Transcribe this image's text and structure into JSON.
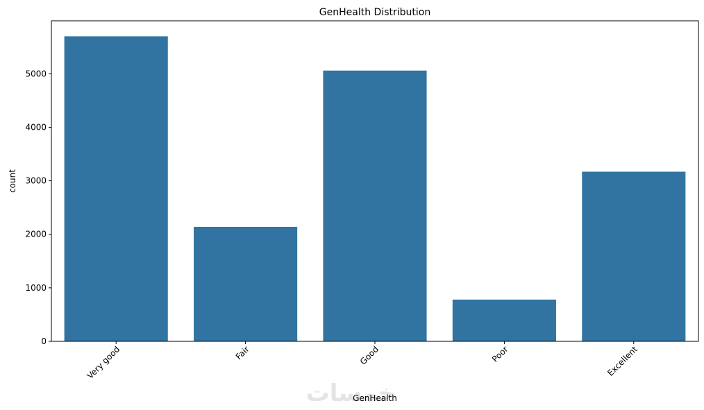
{
  "chart_data": {
    "type": "bar",
    "title": "GenHealth Distribution",
    "xlabel": "GenHealth",
    "ylabel": "count",
    "categories": [
      "Very good",
      "Fair",
      "Good",
      "Poor",
      "Excellent"
    ],
    "values": [
      5700,
      2140,
      5060,
      780,
      3170
    ],
    "ylim": [
      0,
      6000
    ],
    "yticks": [
      0,
      1000,
      2000,
      3000,
      4000,
      5000
    ],
    "bar_color": "#3274a1",
    "grid": false,
    "legend": "none"
  },
  "watermark": {
    "text": "خمسات"
  }
}
